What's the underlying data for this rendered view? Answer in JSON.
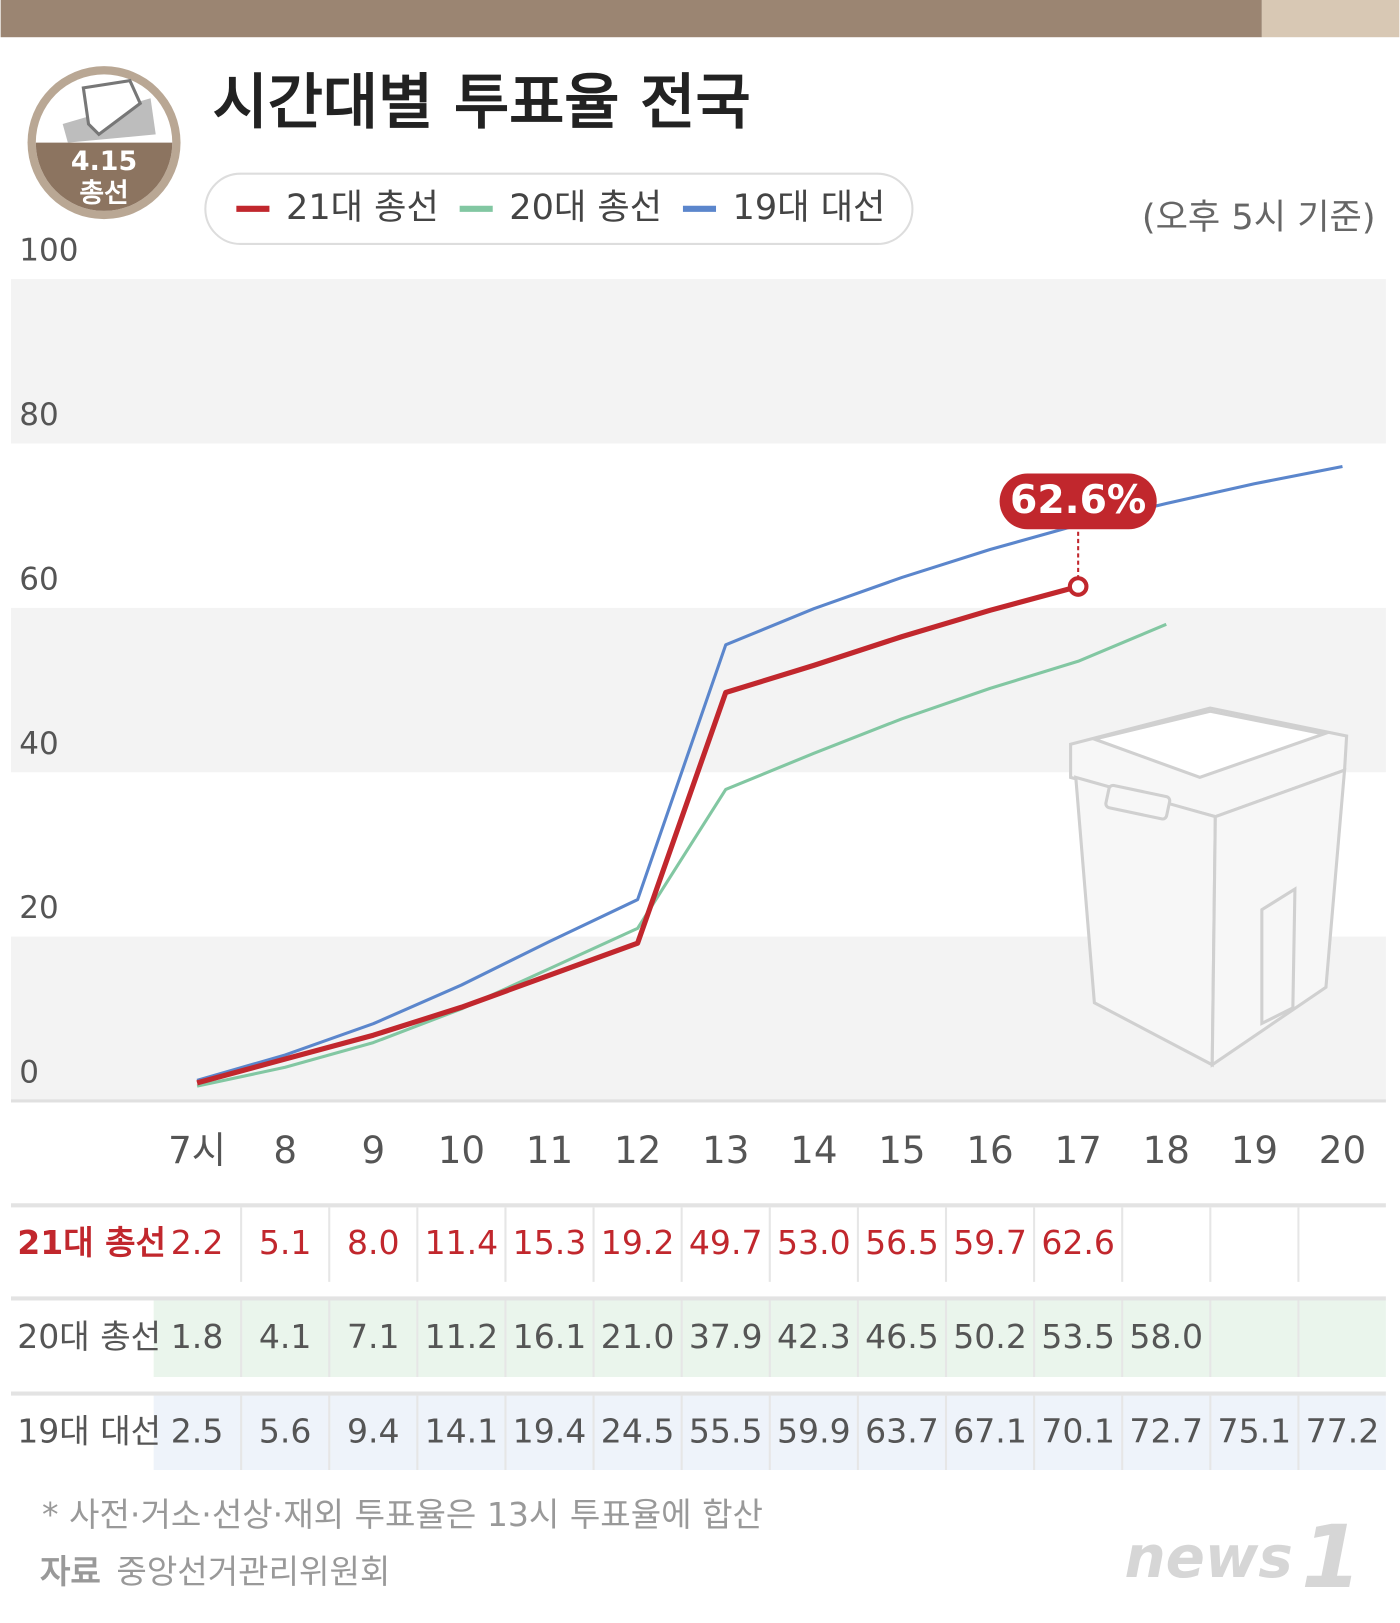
{
  "title": "시간대별 투표율 전국",
  "badge": {
    "date": "4.15",
    "label": "총선"
  },
  "note": "(오후 5시 기준)",
  "footnote": "* 사전·거소·선상·재외 투표율은 13시 투표율에 합산",
  "source": {
    "label": "자료",
    "text": "중앙선거관리위원회"
  },
  "logo": {
    "word": "news",
    "digit": "1"
  },
  "chart_data": {
    "type": "line",
    "categories": [
      "7시",
      "8",
      "9",
      "10",
      "11",
      "12",
      "13",
      "14",
      "15",
      "16",
      "17",
      "18",
      "19",
      "20"
    ],
    "ylim": [
      0,
      100
    ],
    "yticks": [
      0,
      20,
      40,
      60,
      80,
      100
    ],
    "grid": true,
    "annotation": "62.6%",
    "series": [
      {
        "name": "21대 총선",
        "color": "#c1272d",
        "values": [
          2.2,
          5.1,
          8.0,
          11.4,
          15.3,
          19.2,
          49.7,
          53.0,
          56.5,
          59.7,
          62.6,
          null,
          null,
          null
        ],
        "value_labels": [
          "2.2",
          "5.1",
          "8.0",
          "11.4",
          "15.3",
          "19.2",
          "49.7",
          "53.0",
          "56.5",
          "59.7",
          "62.6",
          null,
          null,
          null
        ]
      },
      {
        "name": "20대 총선",
        "color": "#82c7a2",
        "values": [
          1.8,
          4.1,
          7.1,
          11.2,
          16.1,
          21.0,
          37.9,
          42.3,
          46.5,
          50.2,
          53.5,
          58.0,
          null,
          null
        ],
        "value_labels": [
          "1.8",
          "4.1",
          "7.1",
          "11.2",
          "16.1",
          "21.0",
          "37.9",
          "42.3",
          "46.5",
          "50.2",
          "53.5",
          "58.0",
          null,
          null
        ]
      },
      {
        "name": "19대 대선",
        "color": "#5b86cc",
        "values": [
          2.5,
          5.6,
          9.4,
          14.1,
          19.4,
          24.5,
          55.5,
          59.9,
          63.7,
          67.1,
          70.1,
          72.7,
          75.1,
          77.2
        ],
        "value_labels": [
          "2.5",
          "5.6",
          "9.4",
          "14.1",
          "19.4",
          "24.5",
          "55.5",
          "59.9",
          "63.7",
          "67.1",
          "70.1",
          "72.7",
          "75.1",
          "77.2"
        ]
      }
    ]
  }
}
